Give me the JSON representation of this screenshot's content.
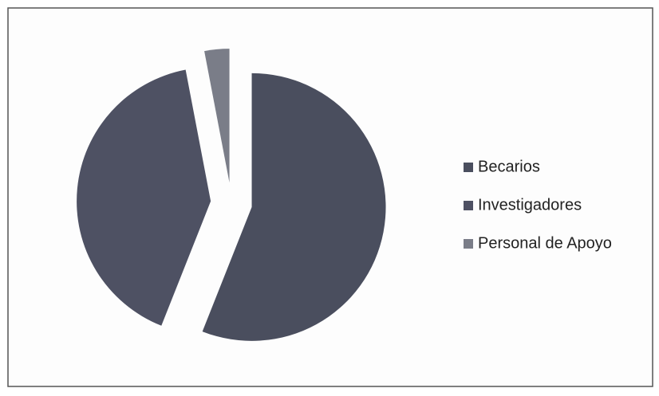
{
  "chart_data": {
    "type": "pie",
    "categories": [
      "Becarios",
      "Investigadores",
      "Personal de Apoyo"
    ],
    "values": [
      56,
      41,
      3
    ],
    "colors": [
      "#4a4e5e",
      "#4e5163",
      "#7a7d88"
    ],
    "exploded": true,
    "legend": "right"
  }
}
